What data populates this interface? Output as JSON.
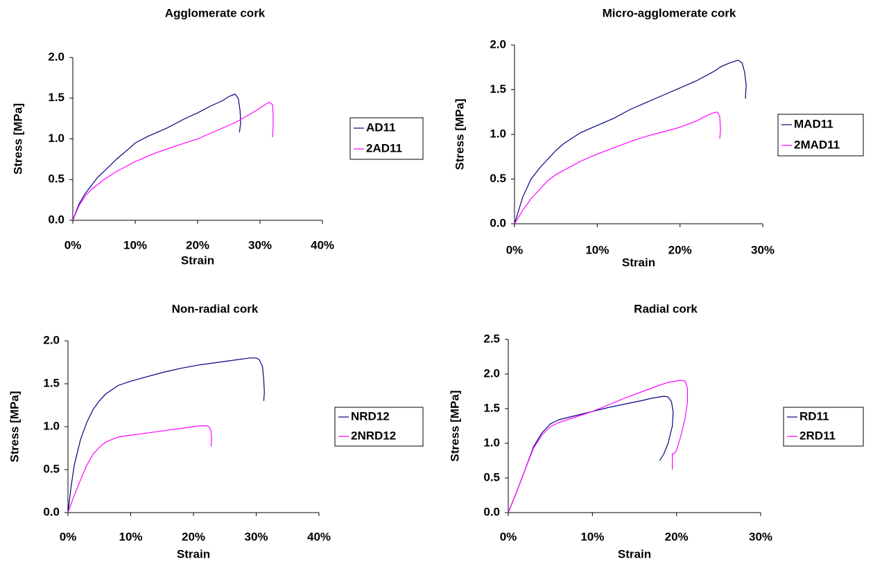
{
  "chart_data": [
    {
      "type": "line",
      "title": "Agglomerate cork",
      "xlabel": "Strain",
      "ylabel": "Stress [MPa]",
      "xlim": [
        0,
        40
      ],
      "xticks": [
        {
          "value": 0,
          "label": "0%"
        },
        {
          "value": 10,
          "label": "10%"
        },
        {
          "value": 20,
          "label": "20%"
        },
        {
          "value": 30,
          "label": "30%"
        },
        {
          "value": 40,
          "label": "40%"
        }
      ],
      "ylim": [
        0,
        2
      ],
      "yticks": [
        {
          "value": 0,
          "label": "0.0"
        },
        0.5,
        {
          "value": 1,
          "label": "1.0"
        },
        1.5,
        {
          "value": 2,
          "label": "2.0"
        }
      ],
      "series": [
        {
          "name": "AD11",
          "color": "#000080",
          "x": [
            0,
            1,
            2,
            3,
            4,
            5,
            7,
            9,
            10,
            12,
            15,
            18,
            20,
            22,
            24,
            25,
            26,
            26.5,
            26.8,
            26.9,
            26.7
          ],
          "values": [
            0,
            0.2,
            0.33,
            0.43,
            0.53,
            0.6,
            0.75,
            0.88,
            0.95,
            1.03,
            1.13,
            1.25,
            1.32,
            1.4,
            1.47,
            1.52,
            1.55,
            1.5,
            1.35,
            1.2,
            1.08
          ]
        },
        {
          "name": "2AD11",
          "color": "#ff00ff",
          "x": [
            0,
            1,
            2,
            3,
            5,
            7,
            10,
            13,
            16,
            20,
            23,
            26,
            29,
            30,
            31,
            31.5,
            32,
            32.1,
            32.1,
            32
          ],
          "values": [
            0,
            0.18,
            0.3,
            0.38,
            0.5,
            0.6,
            0.72,
            0.82,
            0.9,
            1.0,
            1.1,
            1.2,
            1.33,
            1.38,
            1.43,
            1.45,
            1.42,
            1.3,
            1.15,
            1.02
          ]
        }
      ]
    },
    {
      "type": "line",
      "title": "Micro-agglomerate cork",
      "xlabel": "Strain",
      "ylabel": "Stress [MPa]",
      "xlim": [
        0,
        30
      ],
      "xticks": [
        {
          "value": 0,
          "label": "0%"
        },
        {
          "value": 10,
          "label": "10%"
        },
        {
          "value": 20,
          "label": "20%"
        },
        {
          "value": 30,
          "label": "30%"
        }
      ],
      "ylim": [
        0,
        2
      ],
      "yticks": [
        {
          "value": 0,
          "label": "0.0"
        },
        0.5,
        {
          "value": 1,
          "label": "1.0"
        },
        1.5,
        {
          "value": 2,
          "label": "2.0"
        }
      ],
      "series": [
        {
          "name": "MAD11",
          "color": "#000080",
          "x": [
            0,
            1,
            2,
            3,
            4,
            5,
            6,
            8,
            10,
            12,
            14,
            16,
            18,
            20,
            22,
            24,
            25,
            26,
            27,
            27.5,
            27.8,
            28,
            27.9
          ],
          "values": [
            0,
            0.3,
            0.5,
            0.62,
            0.72,
            0.82,
            0.9,
            1.02,
            1.1,
            1.18,
            1.28,
            1.36,
            1.44,
            1.52,
            1.6,
            1.7,
            1.76,
            1.8,
            1.83,
            1.8,
            1.7,
            1.55,
            1.4
          ]
        },
        {
          "name": "2MAD11",
          "color": "#ff00ff",
          "x": [
            0,
            1,
            2,
            3,
            4,
            5,
            6,
            8,
            10,
            12,
            14,
            16,
            18,
            20,
            22,
            23,
            24,
            24.5,
            24.8,
            24.9,
            24.8
          ],
          "values": [
            0,
            0.15,
            0.28,
            0.38,
            0.48,
            0.55,
            0.6,
            0.7,
            0.78,
            0.85,
            0.92,
            0.98,
            1.03,
            1.08,
            1.15,
            1.2,
            1.24,
            1.25,
            1.2,
            1.05,
            0.95
          ]
        }
      ]
    },
    {
      "type": "line",
      "title": "Non-radial cork",
      "xlabel": "Strain",
      "ylabel": "Stress [MPa]",
      "xlim": [
        0,
        40
      ],
      "xticks": [
        {
          "value": 0,
          "label": "0%"
        },
        {
          "value": 10,
          "label": "10%"
        },
        {
          "value": 20,
          "label": "20%"
        },
        {
          "value": 30,
          "label": "30%"
        },
        {
          "value": 40,
          "label": "40%"
        }
      ],
      "ylim": [
        0,
        2
      ],
      "yticks": [
        {
          "value": 0,
          "label": "0.0"
        },
        0.5,
        {
          "value": 1,
          "label": "1.0"
        },
        1.5,
        {
          "value": 2,
          "label": "2.0"
        }
      ],
      "series": [
        {
          "name": "NRD12",
          "color": "#000080",
          "x": [
            0,
            0.5,
            1,
            2,
            3,
            4,
            5,
            6,
            8,
            10,
            12,
            15,
            18,
            21,
            24,
            27,
            29,
            30,
            30.5,
            31,
            31.2,
            31.3,
            31.2
          ],
          "values": [
            0,
            0.3,
            0.55,
            0.85,
            1.05,
            1.2,
            1.3,
            1.38,
            1.48,
            1.53,
            1.57,
            1.63,
            1.68,
            1.72,
            1.75,
            1.78,
            1.8,
            1.8,
            1.78,
            1.7,
            1.55,
            1.4,
            1.3
          ]
        },
        {
          "name": "2NRD12",
          "color": "#ff00ff",
          "x": [
            0,
            1,
            2,
            3,
            4,
            5,
            6,
            8,
            10,
            12,
            15,
            18,
            20,
            21,
            22,
            22.5,
            22.8,
            22.9,
            22.8
          ],
          "values": [
            0,
            0.2,
            0.38,
            0.55,
            0.68,
            0.76,
            0.82,
            0.88,
            0.9,
            0.92,
            0.95,
            0.98,
            1.0,
            1.01,
            1.01,
            1.0,
            0.95,
            0.85,
            0.77
          ]
        }
      ]
    },
    {
      "type": "line",
      "title": "Radial cork",
      "xlabel": "Strain",
      "ylabel": "Stress [MPa]",
      "xlim": [
        0,
        30
      ],
      "xticks": [
        {
          "value": 0,
          "label": "0%"
        },
        {
          "value": 10,
          "label": "10%"
        },
        {
          "value": 20,
          "label": "20%"
        },
        {
          "value": 30,
          "label": "30%"
        }
      ],
      "ylim": [
        0,
        2.5
      ],
      "yticks": [
        {
          "value": 0,
          "label": "0.0"
        },
        0.5,
        {
          "value": 1,
          "label": "1.0"
        },
        1.5,
        {
          "value": 2,
          "label": "2.0"
        },
        2.5
      ],
      "series": [
        {
          "name": "RD11",
          "color": "#000080",
          "x": [
            0,
            1,
            2,
            3,
            4,
            5,
            6,
            8,
            10,
            12,
            14,
            16,
            17,
            18,
            18.5,
            19,
            19.4,
            19.6,
            19.5,
            19,
            18.5,
            18
          ],
          "values": [
            0,
            0.3,
            0.62,
            0.95,
            1.15,
            1.28,
            1.34,
            1.4,
            1.46,
            1.52,
            1.57,
            1.62,
            1.65,
            1.67,
            1.68,
            1.67,
            1.6,
            1.45,
            1.25,
            1.0,
            0.85,
            0.75
          ]
        },
        {
          "name": "2RD11",
          "color": "#ff00ff",
          "x": [
            0,
            1,
            2,
            3,
            4,
            5,
            6,
            8,
            10,
            12,
            14,
            16,
            18,
            19,
            20,
            20.5,
            21,
            21.3,
            21.3,
            21,
            20.5,
            20,
            19.7,
            19.5,
            19.5
          ],
          "values": [
            0,
            0.3,
            0.62,
            0.93,
            1.12,
            1.24,
            1.3,
            1.38,
            1.46,
            1.56,
            1.66,
            1.75,
            1.84,
            1.88,
            1.9,
            1.91,
            1.9,
            1.8,
            1.6,
            1.35,
            1.1,
            0.9,
            0.85,
            0.85,
            0.62
          ]
        }
      ]
    }
  ]
}
